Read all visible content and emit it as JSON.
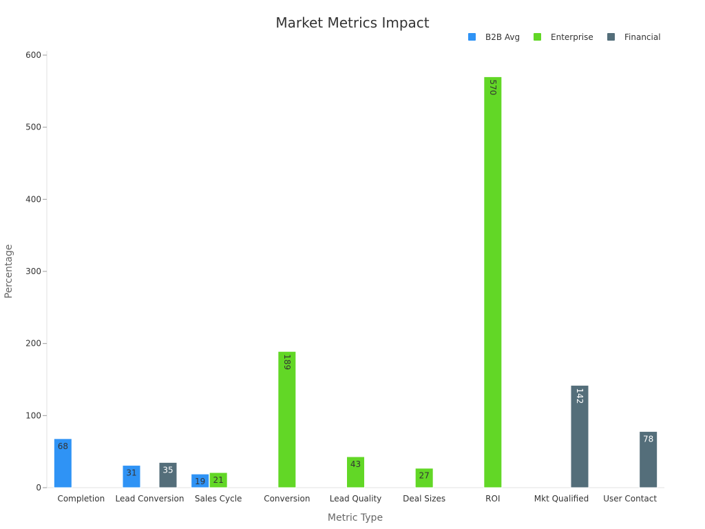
{
  "chart_data": {
    "type": "bar",
    "title": "Market Metrics Impact",
    "xlabel": "Metric Type",
    "ylabel": "Percentage",
    "ylim": [
      0,
      600
    ],
    "yticks": [
      0,
      100,
      200,
      300,
      400,
      500,
      600
    ],
    "grid": false,
    "legend_position": "top-right",
    "categories": [
      "Completion",
      "Lead Conversion",
      "Sales Cycle",
      "Conversion",
      "Lead Quality",
      "Deal Sizes",
      "ROI",
      "Mkt Qualified",
      "User Contact"
    ],
    "series": [
      {
        "name": "B2B Avg",
        "color": "#2f93f5",
        "label_color": "#333333",
        "values": [
          68,
          31,
          19,
          null,
          null,
          null,
          null,
          null,
          null
        ]
      },
      {
        "name": "Enterprise",
        "color": "#62d726",
        "label_color": "#333333",
        "values": [
          null,
          null,
          21,
          189,
          43,
          27,
          570,
          null,
          null
        ]
      },
      {
        "name": "Financial",
        "color": "#546e7a",
        "label_color": "#ffffff",
        "values": [
          null,
          35,
          null,
          null,
          null,
          null,
          null,
          142,
          78
        ]
      }
    ]
  }
}
